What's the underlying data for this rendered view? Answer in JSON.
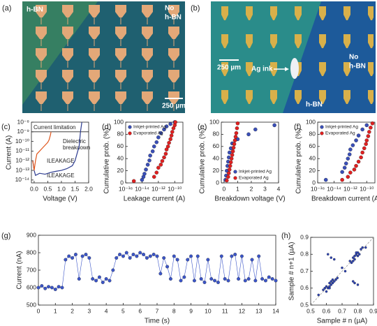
{
  "panel_a": {
    "label": "(a)",
    "left_label": "h-BN",
    "right_label": [
      "No",
      "h-BN"
    ],
    "scale_bar": "250 µm"
  },
  "panel_b": {
    "label": "(b)",
    "scale_bar": "250 µm",
    "ink_label": "Ag ink",
    "right_label": [
      "No",
      "h-BN"
    ],
    "bottom_label": "h-BN"
  },
  "chart_data": [
    {
      "type": "line",
      "panel_label": "(c)",
      "xlabel": "Voltage (V)",
      "ylabel": "Current (A)",
      "yscale": "log",
      "xlim": [
        -0.1,
        2
      ],
      "ylim": [
        5e-15,
        1e-08
      ],
      "xticks": [
        {
          "value": 0,
          "label": "0.0"
        },
        {
          "value": 0.5,
          "label": "0.5"
        },
        {
          "value": 1,
          "label": "1.0"
        },
        {
          "value": 1.5,
          "label": "1.5"
        },
        {
          "value": 2,
          "label": "2.0"
        }
      ],
      "yticks": [
        {
          "value": 1e-08,
          "label": "10⁻⁸"
        },
        {
          "value": 1e-09,
          "label": "10⁻⁹"
        },
        {
          "value": 1e-10,
          "label": "10⁻¹⁰"
        },
        {
          "value": 1e-11,
          "label": "10⁻¹¹"
        },
        {
          "value": 1e-12,
          "label": "10⁻¹²"
        },
        {
          "value": 1e-13,
          "label": "10⁻¹³"
        },
        {
          "value": 1e-14,
          "label": "10⁻¹⁴"
        }
      ],
      "current_limit": 1e-09,
      "annotations": [
        "Current limitation",
        "Dielectric",
        "breakdown",
        "ILEAKAGE",
        "ILEAKAGE"
      ],
      "series": [
        {
          "color": "#2b3a8f",
          "x": [
            -0.05,
            0,
            0.05,
            0.2,
            0.4,
            0.6,
            0.8,
            1.0,
            1.2,
            1.4,
            1.5,
            1.6,
            1.65,
            1.7,
            1.75
          ],
          "values": [
            1e-12,
            1e-13,
            3e-14,
            5e-14,
            4e-14,
            6e-14,
            8e-14,
            1e-13,
            1.5e-13,
            3e-13,
            1e-12,
            1e-11,
            3e-11,
            1e-09,
            1e-08
          ]
        },
        {
          "color": "#e0561d",
          "x": [
            -0.05,
            0,
            0.05,
            0.1,
            0.2,
            0.3,
            0.4,
            0.5,
            0.55,
            0.6,
            0.62
          ],
          "values": [
            1e-12,
            1e-13,
            1e-12,
            5e-12,
            1e-11,
            2e-11,
            4e-11,
            8e-11,
            1.5e-10,
            5e-10,
            1e-09
          ]
        }
      ]
    },
    {
      "type": "scatter",
      "panel_label": "(d)",
      "xlabel": "Leakage current (A)",
      "ylabel": "Cumulative prob. (%)",
      "xscale": "log",
      "legend": "upper left",
      "xlim": [
        1e-16,
        1e-09
      ],
      "ylim": [
        0,
        100
      ],
      "xticks": [
        {
          "value": 1e-16,
          "label": "10⁻¹⁶"
        },
        {
          "value": 1e-14,
          "label": "10⁻¹⁴"
        },
        {
          "value": 1e-12,
          "label": "10⁻¹²"
        },
        {
          "value": 1e-10,
          "label": "10⁻¹⁰"
        }
      ],
      "yticks": [
        0,
        20,
        40,
        60,
        80,
        100
      ],
      "series": [
        {
          "name": "Inkjet-printed Ag",
          "color": "#3a4fb8",
          "x": [
            1e-14,
            1.5e-14,
            2e-14,
            3e-14,
            5e-14,
            8e-14,
            1e-13,
            2e-13,
            3e-13,
            6e-13,
            1e-12,
            2e-12,
            5e-12,
            1e-11,
            3e-11,
            1e-10
          ],
          "values": [
            5,
            10,
            15,
            22,
            30,
            37,
            45,
            52,
            60,
            67,
            75,
            82,
            88,
            93,
            97,
            100
          ]
        },
        {
          "name": "Evaporated Ag",
          "color": "#e02020",
          "x": [
            1e-15,
            3e-13,
            6e-13,
            1e-12,
            2e-12,
            3e-12,
            5e-12,
            8e-12,
            1e-11,
            1.5e-11,
            2e-11,
            3e-11,
            4e-11,
            5e-11,
            7e-11,
            1e-10,
            1.2e-10
          ],
          "values": [
            3,
            10,
            17,
            25,
            30,
            36,
            42,
            48,
            55,
            60,
            66,
            72,
            78,
            84,
            90,
            95,
            100
          ]
        }
      ]
    },
    {
      "type": "scatter",
      "panel_label": "(e)",
      "xlabel": "Breakdown voltage (V)",
      "ylabel": "Cumulative prob. (%)",
      "legend": "lower right",
      "xlim": [
        -0.2,
        4
      ],
      "ylim": [
        0,
        100
      ],
      "xticks": [
        0,
        1,
        2,
        3,
        4
      ],
      "yticks": [
        0,
        20,
        40,
        60,
        80,
        100
      ],
      "series": [
        {
          "name": "Inkjet-printed Ag",
          "color": "#3a4fb8",
          "x": [
            0.1,
            0.15,
            0.2,
            0.25,
            0.3,
            0.35,
            0.4,
            0.5,
            0.6,
            1.0,
            1.8,
            2.3,
            3.7
          ],
          "values": [
            5,
            12,
            20,
            28,
            35,
            42,
            50,
            57,
            65,
            72,
            80,
            88,
            95
          ]
        },
        {
          "name": "Evaporated Ag",
          "color": "#e02020",
          "x": [
            0.2,
            0.3,
            0.35,
            0.4,
            0.45,
            0.5,
            0.55,
            0.6,
            0.65,
            0.7,
            0.75,
            0.8,
            0.85,
            0.9,
            0.95,
            1.0
          ],
          "values": [
            4,
            10,
            16,
            22,
            28,
            34,
            40,
            46,
            52,
            58,
            64,
            70,
            76,
            82,
            90,
            98
          ]
        }
      ]
    },
    {
      "type": "scatter",
      "panel_label": "(f)",
      "xlabel": "Breakdown current (A)",
      "ylabel": "Cumulative prob. (%)",
      "xscale": "log",
      "legend": "upper left",
      "xlim": [
        1e-16,
        1e-09
      ],
      "ylim": [
        0,
        100
      ],
      "xticks": [
        {
          "value": 1e-16,
          "label": "10⁻¹⁶"
        },
        {
          "value": 1e-14,
          "label": "10⁻¹⁴"
        },
        {
          "value": 1e-12,
          "label": "10⁻¹²"
        },
        {
          "value": 1e-10,
          "label": "10⁻¹⁰"
        }
      ],
      "yticks": [
        0,
        20,
        40,
        60,
        80,
        100
      ],
      "series": [
        {
          "name": "Inkjet-printed Ag",
          "color": "#3a4fb8",
          "x": [
            1e-15,
            1e-13,
            2e-13,
            3e-13,
            5e-13,
            8e-13,
            1e-12,
            2e-12,
            5e-12,
            1e-11,
            3e-11,
            1e-10
          ],
          "values": [
            5,
            18,
            25,
            32,
            40,
            47,
            55,
            62,
            70,
            78,
            88,
            95
          ]
        },
        {
          "name": "Evaporated Ag",
          "color": "#e02020",
          "x": [
            1e-13,
            5e-13,
            1e-12,
            3e-12,
            5e-12,
            1e-11,
            2e-11,
            3e-11,
            5e-11,
            8e-11,
            1e-10,
            1.5e-10,
            2e-10,
            3e-10,
            5e-10
          ],
          "values": [
            5,
            10,
            17,
            22,
            28,
            35,
            42,
            50,
            57,
            64,
            70,
            77,
            84,
            91,
            98
          ]
        }
      ]
    },
    {
      "type": "line_scatter",
      "panel_label": "(g)",
      "xlabel": "Time (s)",
      "ylabel": "Current (nA)",
      "xlim": [
        0,
        14
      ],
      "ylim": [
        500,
        900
      ],
      "xticks": [
        0,
        1,
        2,
        3,
        4,
        5,
        6,
        7,
        8,
        9,
        10,
        11,
        12,
        13,
        14
      ],
      "yticks": [
        500,
        600,
        700,
        800,
        900
      ],
      "series": [
        {
          "color": "#3b55c8",
          "x": [
            0,
            0.2,
            0.4,
            0.6,
            0.8,
            1,
            1.2,
            1.4,
            1.6,
            1.8,
            2,
            2.2,
            2.4,
            2.6,
            2.8,
            3,
            3.2,
            3.4,
            3.6,
            3.8,
            4,
            4.2,
            4.4,
            4.6,
            4.8,
            5,
            5.2,
            5.4,
            5.6,
            5.8,
            6,
            6.2,
            6.4,
            6.6,
            6.8,
            7,
            7.2,
            7.4,
            7.6,
            7.8,
            8,
            8.2,
            8.4,
            8.6,
            8.8,
            9,
            9.2,
            9.4,
            9.6,
            9.8,
            10,
            10.2,
            10.4,
            10.6,
            10.8,
            11,
            11.2,
            11.4,
            11.6,
            11.8,
            12,
            12.2,
            12.4,
            12.6,
            12.8,
            13,
            13.2,
            13.4,
            13.6,
            13.8,
            14
          ],
          "values": [
            600,
            610,
            595,
            605,
            600,
            590,
            605,
            600,
            760,
            780,
            770,
            790,
            650,
            780,
            790,
            770,
            650,
            640,
            660,
            630,
            650,
            640,
            700,
            770,
            790,
            780,
            800,
            770,
            790,
            780,
            800,
            790,
            770,
            780,
            790,
            780,
            680,
            770,
            720,
            650,
            780,
            760,
            640,
            660,
            760,
            780,
            640,
            780,
            650,
            630,
            760,
            650,
            640,
            630,
            780,
            650,
            640,
            780,
            790,
            650,
            780,
            640,
            650,
            760,
            640,
            780,
            650,
            640,
            660,
            650,
            640
          ]
        }
      ]
    },
    {
      "type": "scatter",
      "panel_label": "(h)",
      "xlabel": "Sample # n (µA)",
      "ylabel": "Sample # n+1 (µA)",
      "xlim": [
        0.5,
        0.9
      ],
      "ylim": [
        0.5,
        0.9
      ],
      "xticks": [
        0.5,
        0.6,
        0.7,
        0.8,
        0.9
      ],
      "yticks": [
        0.5,
        0.6,
        0.7,
        0.8,
        0.9
      ],
      "series": [
        {
          "color": "#2e45b8",
          "x": [
            0.58,
            0.6,
            0.61,
            0.62,
            0.63,
            0.64,
            0.65,
            0.6,
            0.62,
            0.66,
            0.59,
            0.63,
            0.67,
            0.55,
            0.62,
            0.64,
            0.75,
            0.77,
            0.78,
            0.79,
            0.8,
            0.81,
            0.82,
            0.76,
            0.78,
            0.8,
            0.83,
            0.79,
            0.77,
            0.85,
            0.63,
            0.65,
            0.61,
            0.78,
            0.8,
            0.77,
            0.7,
            0.72
          ],
          "values": [
            0.59,
            0.61,
            0.6,
            0.63,
            0.62,
            0.65,
            0.64,
            0.58,
            0.61,
            0.65,
            0.6,
            0.64,
            0.66,
            0.56,
            0.6,
            0.63,
            0.76,
            0.78,
            0.77,
            0.8,
            0.81,
            0.8,
            0.83,
            0.75,
            0.79,
            0.79,
            0.84,
            0.81,
            0.76,
            0.84,
            0.78,
            0.77,
            0.8,
            0.63,
            0.62,
            0.64,
            0.72,
            0.7
          ]
        }
      ]
    }
  ]
}
